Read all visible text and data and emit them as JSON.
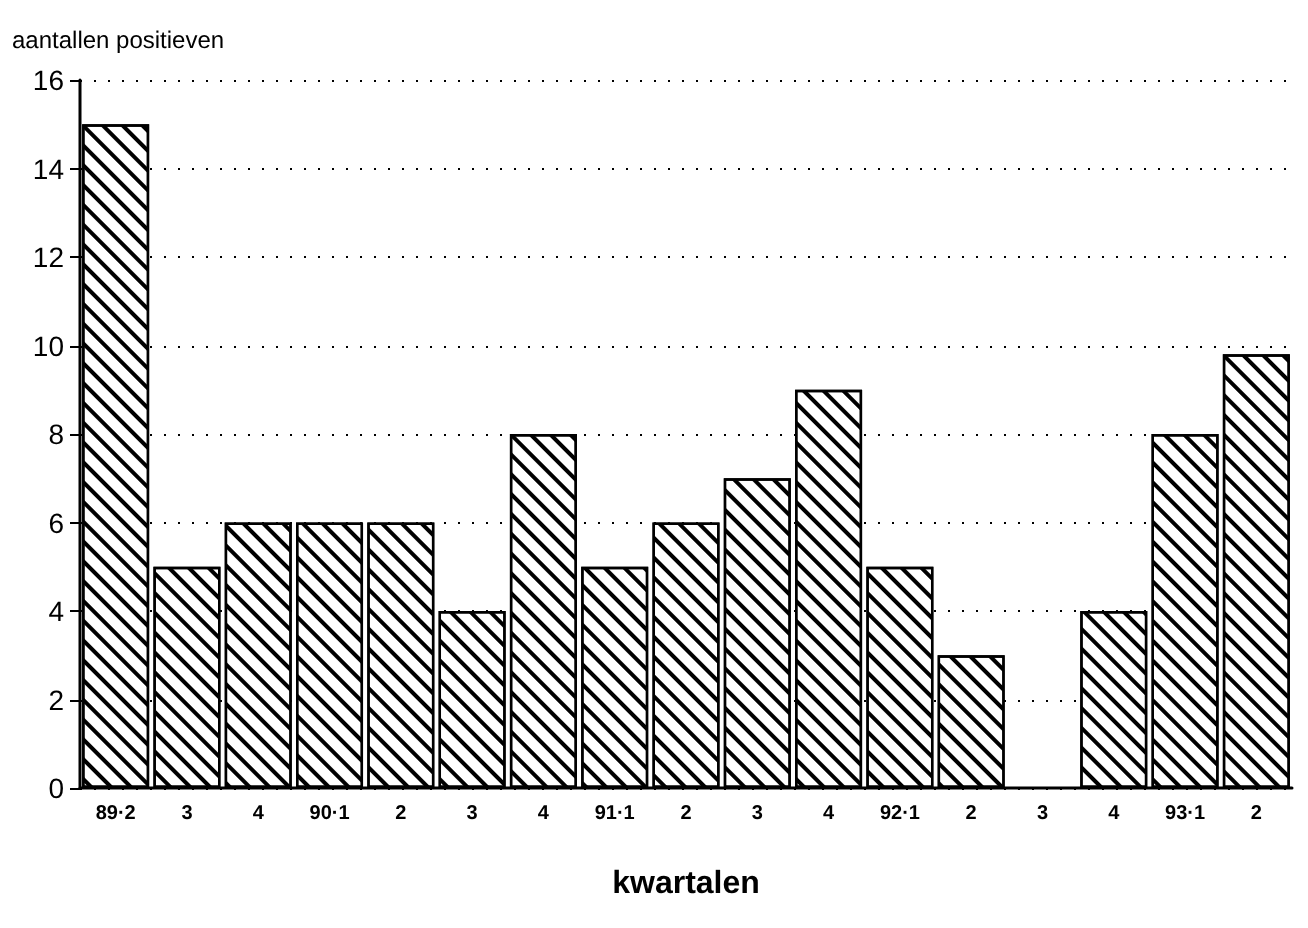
{
  "chart_data": {
    "type": "bar",
    "ylabel": "aantallen positieven",
    "xlabel": "kwartalen",
    "categories": [
      "89·2",
      "3",
      "4",
      "90·1",
      "2",
      "3",
      "4",
      "91·1",
      "2",
      "3",
      "4",
      "92·1",
      "2",
      "3",
      "4",
      "93·1",
      "2"
    ],
    "values": [
      15,
      5,
      6,
      6,
      6,
      4,
      8,
      5,
      6,
      7,
      9,
      5,
      3,
      0,
      4,
      8,
      9.8
    ],
    "color": "#ffffff",
    "ylim": [
      0,
      16
    ],
    "yticks": [
      0,
      2,
      4,
      6,
      8,
      10,
      12,
      14,
      16
    ],
    "grid": "y"
  }
}
